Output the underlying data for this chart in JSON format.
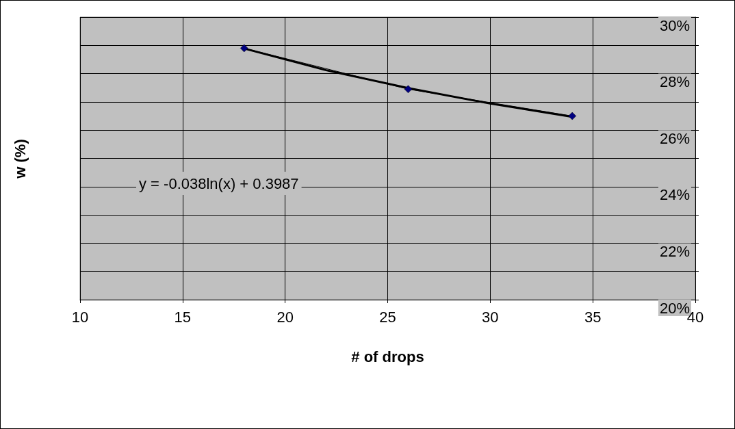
{
  "chart_data": {
    "type": "line",
    "xlabel": "# of drops",
    "ylabel": "w (%)",
    "xlim": [
      10,
      40
    ],
    "xticks": [
      10,
      15,
      20,
      25,
      30,
      35,
      40
    ],
    "ylim": [
      0.2,
      0.3
    ],
    "yticks": [
      {
        "value": 0.2,
        "label": "20%"
      },
      {
        "value": 0.21,
        "label": null
      },
      {
        "value": 0.22,
        "label": "22%"
      },
      {
        "value": 0.23,
        "label": null
      },
      {
        "value": 0.24,
        "label": "24%"
      },
      {
        "value": 0.25,
        "label": null
      },
      {
        "value": 0.26,
        "label": "26%"
      },
      {
        "value": 0.27,
        "label": null
      },
      {
        "value": 0.28,
        "label": "28%"
      },
      {
        "value": 0.29,
        "label": null
      },
      {
        "value": 0.3,
        "label": "30%"
      }
    ],
    "series": [
      {
        "color": "#000000",
        "x": [
          18,
          22,
          26,
          30,
          34
        ],
        "values": [
          0.2889,
          0.2812,
          0.2749,
          0.2694,
          0.2647
        ],
        "line_style": "solid",
        "marker": "none"
      },
      {
        "color": "#000080",
        "x": [
          18,
          26,
          34
        ],
        "values": [
          0.289,
          0.2745,
          0.265
        ],
        "marker": "diamond",
        "line_style": "solid"
      }
    ],
    "annotations": [
      "y = -0.038ln(x) + 0.3987"
    ],
    "grid": true
  }
}
